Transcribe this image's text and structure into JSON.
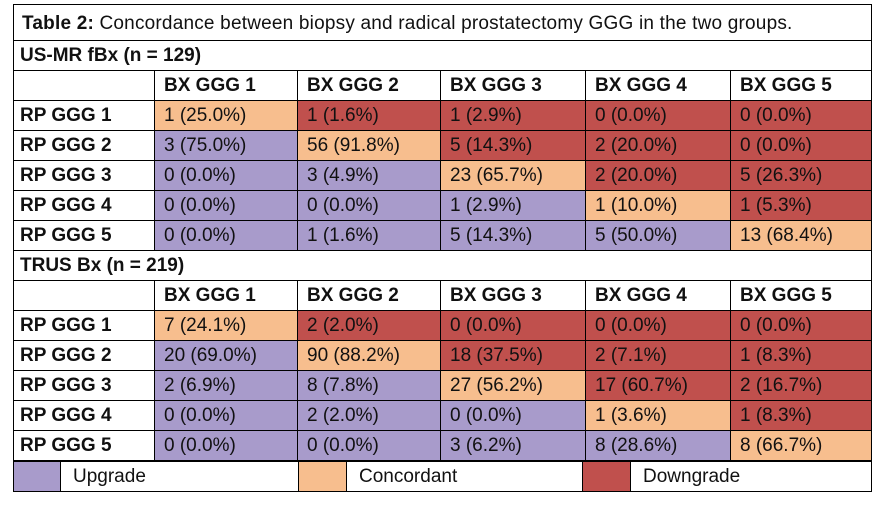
{
  "caption": {
    "label": "Table 2:",
    "text": "Concordance between biopsy and radical prostatectomy GGG in the two groups."
  },
  "colors": {
    "upgrade": "#A89BCB",
    "concordant": "#F7BE8E",
    "downgrade": "#C0504D"
  },
  "column_headers": [
    "BX GGG 1",
    "BX GGG 2",
    "BX GGG 3",
    "BX GGG 4",
    "BX GGG 5"
  ],
  "groups": [
    {
      "title": "US-MR fBx (n = 129)",
      "rows": [
        {
          "label": "RP GGG 1",
          "cells": [
            {
              "text": "1 (25.0%)",
              "type": "concordant"
            },
            {
              "text": "1 (1.6%)",
              "type": "downgrade"
            },
            {
              "text": "1 (2.9%)",
              "type": "downgrade"
            },
            {
              "text": "0 (0.0%)",
              "type": "downgrade"
            },
            {
              "text": "0 (0.0%)",
              "type": "downgrade"
            }
          ]
        },
        {
          "label": "RP GGG 2",
          "cells": [
            {
              "text": "3 (75.0%)",
              "type": "upgrade"
            },
            {
              "text": "56 (91.8%)",
              "type": "concordant"
            },
            {
              "text": "5 (14.3%)",
              "type": "downgrade"
            },
            {
              "text": "2 (20.0%)",
              "type": "downgrade"
            },
            {
              "text": "0 (0.0%)",
              "type": "downgrade"
            }
          ]
        },
        {
          "label": "RP GGG 3",
          "cells": [
            {
              "text": "0 (0.0%)",
              "type": "upgrade"
            },
            {
              "text": "3 (4.9%)",
              "type": "upgrade"
            },
            {
              "text": "23 (65.7%)",
              "type": "concordant"
            },
            {
              "text": "2 (20.0%)",
              "type": "downgrade"
            },
            {
              "text": "5 (26.3%)",
              "type": "downgrade"
            }
          ]
        },
        {
          "label": "RP GGG 4",
          "cells": [
            {
              "text": "0 (0.0%)",
              "type": "upgrade"
            },
            {
              "text": "0 (0.0%)",
              "type": "upgrade"
            },
            {
              "text": "1 (2.9%)",
              "type": "upgrade"
            },
            {
              "text": "1 (10.0%)",
              "type": "concordant"
            },
            {
              "text": "1 (5.3%)",
              "type": "downgrade"
            }
          ]
        },
        {
          "label": "RP GGG 5",
          "cells": [
            {
              "text": "0 (0.0%)",
              "type": "upgrade"
            },
            {
              "text": "1 (1.6%)",
              "type": "upgrade"
            },
            {
              "text": "5 (14.3%)",
              "type": "upgrade"
            },
            {
              "text": "5 (50.0%)",
              "type": "upgrade"
            },
            {
              "text": "13 (68.4%)",
              "type": "concordant"
            }
          ]
        }
      ]
    },
    {
      "title": "TRUS Bx (n = 219)",
      "rows": [
        {
          "label": "RP GGG 1",
          "cells": [
            {
              "text": "7 (24.1%)",
              "type": "concordant"
            },
            {
              "text": "2 (2.0%)",
              "type": "downgrade"
            },
            {
              "text": "0 (0.0%)",
              "type": "downgrade"
            },
            {
              "text": "0 (0.0%)",
              "type": "downgrade"
            },
            {
              "text": "0 (0.0%)",
              "type": "downgrade"
            }
          ]
        },
        {
          "label": "RP GGG 2",
          "cells": [
            {
              "text": "20 (69.0%)",
              "type": "upgrade"
            },
            {
              "text": "90 (88.2%)",
              "type": "concordant"
            },
            {
              "text": "18 (37.5%)",
              "type": "downgrade"
            },
            {
              "text": "2 (7.1%)",
              "type": "downgrade"
            },
            {
              "text": "1 (8.3%)",
              "type": "downgrade"
            }
          ]
        },
        {
          "label": "RP GGG 3",
          "cells": [
            {
              "text": "2 (6.9%)",
              "type": "upgrade"
            },
            {
              "text": "8 (7.8%)",
              "type": "upgrade"
            },
            {
              "text": "27 (56.2%)",
              "type": "concordant"
            },
            {
              "text": "17 (60.7%)",
              "type": "downgrade"
            },
            {
              "text": "2 (16.7%)",
              "type": "downgrade"
            }
          ]
        },
        {
          "label": "RP GGG 4",
          "cells": [
            {
              "text": "0 (0.0%)",
              "type": "upgrade"
            },
            {
              "text": "2 (2.0%)",
              "type": "upgrade"
            },
            {
              "text": "0 (0.0%)",
              "type": "upgrade"
            },
            {
              "text": "1 (3.6%)",
              "type": "concordant"
            },
            {
              "text": "1 (8.3%)",
              "type": "downgrade"
            }
          ]
        },
        {
          "label": "RP GGG 5",
          "cells": [
            {
              "text": "0 (0.0%)",
              "type": "upgrade"
            },
            {
              "text": "0 (0.0%)",
              "type": "upgrade"
            },
            {
              "text": "3 (6.2%)",
              "type": "upgrade"
            },
            {
              "text": "8 (28.6%)",
              "type": "upgrade"
            },
            {
              "text": "8 (66.7%)",
              "type": "concordant"
            }
          ]
        }
      ]
    }
  ],
  "legend": [
    {
      "label": "Upgrade",
      "type": "upgrade"
    },
    {
      "label": "Concordant",
      "type": "concordant"
    },
    {
      "label": "Downgrade",
      "type": "downgrade"
    }
  ]
}
